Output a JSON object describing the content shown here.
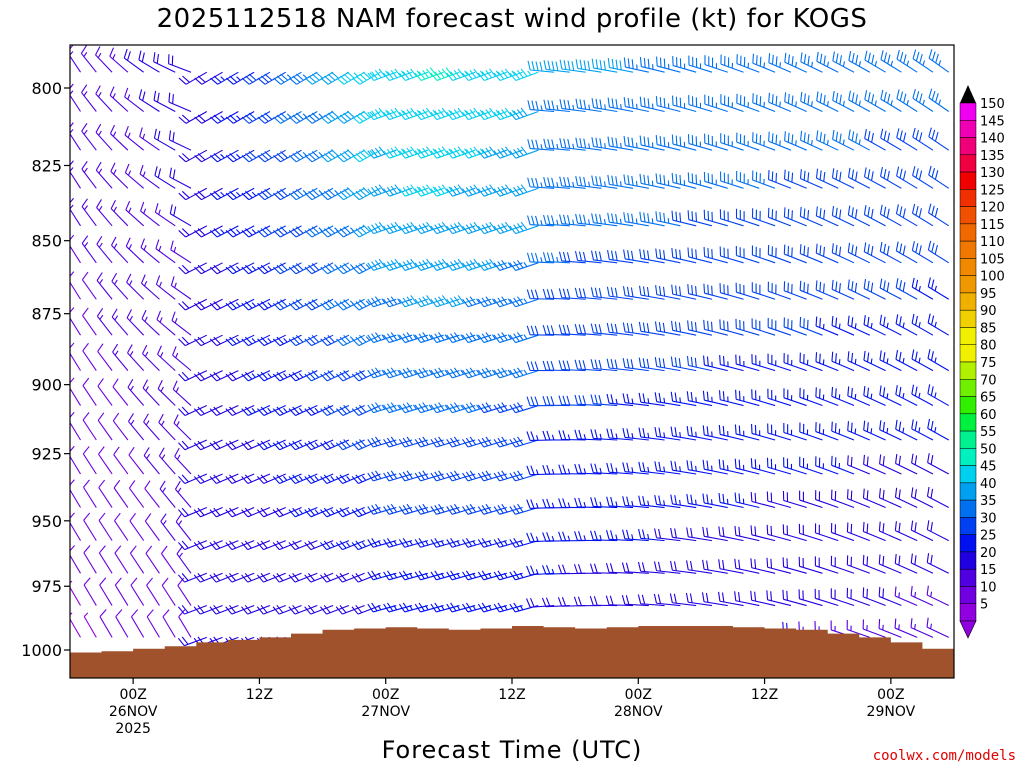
{
  "chart_data": {
    "type": "wind-barb-time-height",
    "title": "2025112518 NAM forecast wind profile (kt) for KOGS",
    "xlabel": "Forecast Time (UTC)",
    "ylabel": "",
    "credit": "coolwx.com/models",
    "y_axis": {
      "label": "",
      "scale": "pressure (hPa), decreasing upward",
      "range": [
        1010,
        790
      ],
      "ticks": [
        "800",
        "825",
        "850",
        "875",
        "900",
        "925",
        "950",
        "975",
        "1000"
      ],
      "tick_values": [
        800,
        825,
        850,
        875,
        900,
        925,
        950,
        975,
        1000
      ]
    },
    "x_axis": {
      "range_hours": [
        -6,
        78
      ],
      "ticks": [
        {
          "hour": 0,
          "line1": "00Z",
          "line2": "26NOV",
          "line3": "2025"
        },
        {
          "hour": 12,
          "line1": "12Z",
          "line2": "",
          "line3": ""
        },
        {
          "hour": 24,
          "line1": "00Z",
          "line2": "27NOV",
          "line3": ""
        },
        {
          "hour": 36,
          "line1": "12Z",
          "line2": "",
          "line3": ""
        },
        {
          "hour": 48,
          "line1": "00Z",
          "line2": "28NOV",
          "line3": ""
        },
        {
          "hour": 60,
          "line1": "12Z",
          "line2": "",
          "line3": ""
        },
        {
          "hour": 72,
          "line1": "00Z",
          "line2": "29NOV",
          "line3": ""
        }
      ]
    },
    "colorbar": {
      "units": "kt",
      "labels": [
        "150",
        "145",
        "140",
        "135",
        "130",
        "125",
        "120",
        "115",
        "110",
        "105",
        "100",
        "95",
        "90",
        "85",
        "80",
        "75",
        "70",
        "65",
        "60",
        "55",
        "50",
        "45",
        "40",
        "35",
        "30",
        "25",
        "20",
        "15",
        "10",
        "5"
      ],
      "colors": [
        "#f000f0",
        "#f000b4",
        "#f00078",
        "#f00040",
        "#f00000",
        "#f03000",
        "#f05000",
        "#f06800",
        "#f07800",
        "#f08800",
        "#f09800",
        "#f0b000",
        "#f0d000",
        "#f0f000",
        "#f0f000",
        "#b0f000",
        "#70f000",
        "#30f000",
        "#00f040",
        "#00f090",
        "#00f0c0",
        "#00d0f0",
        "#00a0f0",
        "#0070f0",
        "#0040f0",
        "#0010f0",
        "#2000e0",
        "#5000e0",
        "#7000e0",
        "#9000e0"
      ]
    },
    "surface_pressure": {
      "hours": [
        -6,
        -3,
        0,
        3,
        6,
        9,
        12,
        15,
        18,
        21,
        24,
        27,
        30,
        33,
        36,
        39,
        42,
        45,
        48,
        51,
        54,
        57,
        60,
        63,
        66,
        69,
        72,
        75,
        78
      ],
      "pressure": [
        1001,
        1000.5,
        999.5,
        998.5,
        997,
        996,
        995,
        993.5,
        992,
        991.5,
        991,
        991.5,
        992,
        991.5,
        990.5,
        991,
        991.5,
        991,
        990.5,
        990.5,
        990.5,
        991,
        991.5,
        992,
        993.5,
        995,
        997,
        999.5,
        1001
      ]
    },
    "wind_profile_description": "Light northerly/northwesterly winds (5-15 kt) before 06Z 26NOV; strengthening southwesterly flow 25-50 kt aloft near 00Z-12Z 27NOV; westerly 25-40 kt persisting through 29NOV."
  }
}
